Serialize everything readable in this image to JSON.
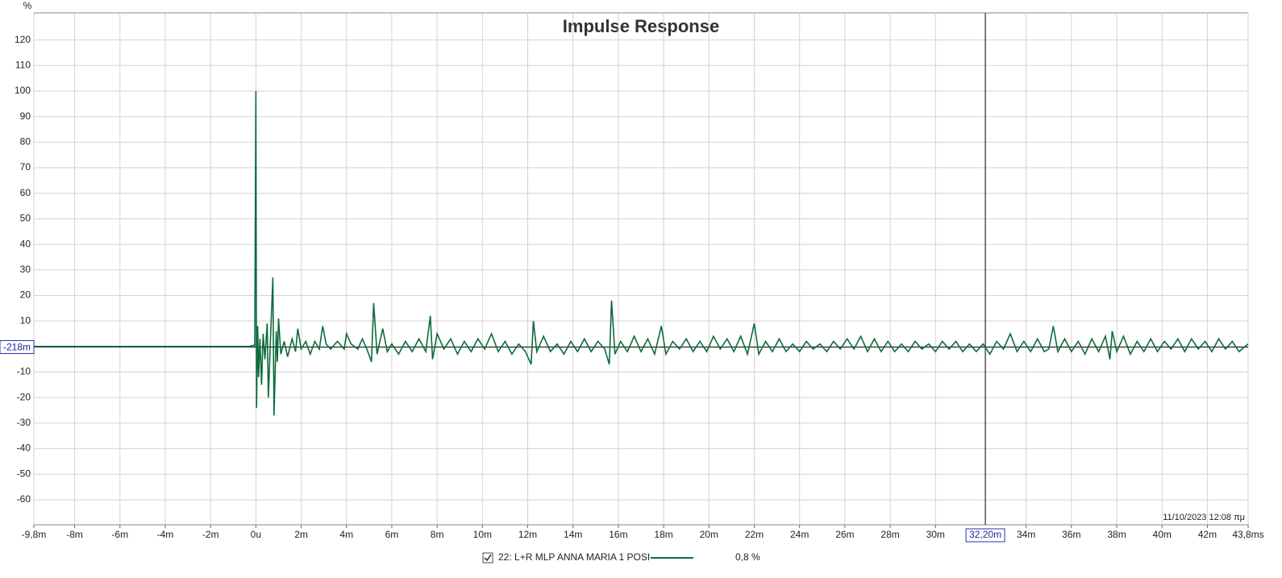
{
  "chart_data": {
    "type": "line",
    "title": "Impulse Response",
    "y_unit": "%",
    "timestamp": "11/10/2023 12:08 πμ",
    "x": [
      -9.8,
      -0.3,
      -0.1,
      -0.05,
      0,
      0.03,
      0.08,
      0.12,
      0.18,
      0.25,
      0.32,
      0.4,
      0.5,
      0.55,
      0.65,
      0.75,
      0.8,
      0.9,
      0.95,
      1.0,
      1.1,
      1.25,
      1.4,
      1.6,
      1.75,
      1.85,
      2.0,
      2.2,
      2.4,
      2.6,
      2.8,
      2.95,
      3.1,
      3.3,
      3.6,
      3.9,
      4.0,
      4.2,
      4.5,
      4.7,
      4.9,
      5.1,
      5.2,
      5.35,
      5.6,
      5.8,
      6.0,
      6.3,
      6.6,
      6.9,
      7.2,
      7.5,
      7.7,
      7.8,
      8.0,
      8.3,
      8.6,
      8.9,
      9.2,
      9.5,
      9.8,
      10.1,
      10.4,
      10.7,
      11.0,
      11.3,
      11.6,
      11.9,
      12.15,
      12.25,
      12.4,
      12.7,
      13.0,
      13.3,
      13.6,
      13.9,
      14.2,
      14.5,
      14.8,
      15.1,
      15.4,
      15.6,
      15.7,
      15.85,
      16.1,
      16.4,
      16.7,
      17.0,
      17.3,
      17.6,
      17.9,
      18.1,
      18.4,
      18.7,
      19.0,
      19.3,
      19.6,
      19.9,
      20.2,
      20.5,
      20.8,
      21.1,
      21.4,
      21.7,
      22.0,
      22.2,
      22.5,
      22.8,
      23.1,
      23.4,
      23.7,
      24.0,
      24.3,
      24.6,
      24.9,
      25.2,
      25.5,
      25.8,
      26.1,
      26.4,
      26.7,
      27.0,
      27.3,
      27.6,
      27.9,
      28.2,
      28.5,
      28.8,
      29.1,
      29.4,
      29.7,
      30.0,
      30.3,
      30.6,
      30.9,
      31.2,
      31.5,
      31.8,
      32.1,
      32.4,
      32.7,
      33.0,
      33.3,
      33.6,
      33.9,
      34.2,
      34.5,
      34.8,
      35.0,
      35.2,
      35.4,
      35.7,
      36.0,
      36.3,
      36.6,
      36.9,
      37.2,
      37.5,
      37.7,
      37.8,
      38.0,
      38.3,
      38.6,
      38.9,
      39.2,
      39.5,
      39.8,
      40.1,
      40.4,
      40.7,
      41.0,
      41.3,
      41.6,
      41.9,
      42.2,
      42.5,
      42.8,
      43.1,
      43.4,
      43.8
    ],
    "series": [
      {
        "name": "22: L+R MLP ANNA MARIA 1 POSI",
        "color": "#0d6b3c",
        "checked": true,
        "cursor_value": {
          "value": 0.8,
          "label": "0,8 %"
        },
        "values": [
          0,
          0,
          0.5,
          0,
          100,
          -24,
          8,
          -12,
          3,
          -15,
          5,
          -5,
          9,
          -20,
          4,
          27,
          -27,
          6,
          -6,
          11,
          -3,
          2,
          -4,
          3,
          -2,
          7,
          -1,
          2,
          -3,
          2,
          -1,
          8,
          1,
          -1,
          2,
          -1,
          5,
          1,
          -1,
          3,
          -1,
          -6,
          17,
          -3,
          7,
          -2,
          1,
          -3,
          2,
          -2,
          3,
          -2,
          12,
          -5,
          5,
          -1,
          3,
          -3,
          2,
          -2,
          3,
          -1,
          5,
          -2,
          2,
          -3,
          1,
          -2,
          -7,
          10,
          -2,
          4,
          -2,
          1,
          -3,
          2,
          -2,
          3,
          -2,
          2,
          -1,
          -7,
          18,
          -3,
          2,
          -2,
          4,
          -2,
          3,
          -3,
          8,
          -3,
          2,
          -1,
          3,
          -2,
          2,
          -2,
          4,
          -1,
          3,
          -2,
          4,
          -3,
          9,
          -3,
          2,
          -2,
          3,
          -2,
          1,
          -2,
          2,
          -1,
          1,
          -2,
          2,
          -1,
          3,
          -1,
          4,
          -2,
          3,
          -2,
          2,
          -2,
          1,
          -2,
          2,
          -1,
          1,
          -2,
          2,
          -1,
          2,
          -2,
          1,
          -2,
          1,
          -3,
          2,
          -1,
          5,
          -2,
          2,
          -2,
          3,
          -2,
          -1,
          8,
          -2,
          3,
          -2,
          2,
          -3,
          3,
          -2,
          4,
          -5,
          6,
          -2,
          4,
          -3,
          2,
          -2,
          3,
          -2,
          2,
          -1,
          3,
          -2,
          3,
          -1,
          2,
          -2,
          3,
          -1,
          2,
          -2,
          1
        ]
      }
    ],
    "xlim": [
      -9.8,
      43.8
    ],
    "ylim": [
      -69.8,
      130.6
    ],
    "xticks": [
      {
        "value": -9.8,
        "label": "-9,8m"
      },
      {
        "value": -8,
        "label": "-8m"
      },
      {
        "value": -6,
        "label": "-6m"
      },
      {
        "value": -4,
        "label": "-4m"
      },
      {
        "value": -2,
        "label": "-2m"
      },
      {
        "value": 0,
        "label": "0u"
      },
      {
        "value": 2,
        "label": "2m"
      },
      {
        "value": 4,
        "label": "4m"
      },
      {
        "value": 6,
        "label": "6m"
      },
      {
        "value": 8,
        "label": "8m"
      },
      {
        "value": 10,
        "label": "10m"
      },
      {
        "value": 12,
        "label": "12m"
      },
      {
        "value": 14,
        "label": "14m"
      },
      {
        "value": 16,
        "label": "16m"
      },
      {
        "value": 18,
        "label": "18m"
      },
      {
        "value": 20,
        "label": "20m"
      },
      {
        "value": 22,
        "label": "22m"
      },
      {
        "value": 24,
        "label": "24m"
      },
      {
        "value": 26,
        "label": "26m"
      },
      {
        "value": 28,
        "label": "28m"
      },
      {
        "value": 30,
        "label": "30m"
      },
      {
        "value": 34,
        "label": "34m"
      },
      {
        "value": 36,
        "label": "36m"
      },
      {
        "value": 38,
        "label": "38m"
      },
      {
        "value": 40,
        "label": "40m"
      },
      {
        "value": 42,
        "label": "42m"
      },
      {
        "value": 43.8,
        "label": "43,8ms"
      }
    ],
    "yticks": [
      -60,
      -50,
      -40,
      -30,
      -20,
      -10,
      10,
      20,
      30,
      40,
      50,
      60,
      70,
      80,
      90,
      100,
      110,
      120
    ],
    "grid": true,
    "cursor": {
      "x": {
        "value": 32.2,
        "label": "32,20m"
      },
      "y": {
        "value": -0.218,
        "label": "-218m"
      }
    }
  }
}
